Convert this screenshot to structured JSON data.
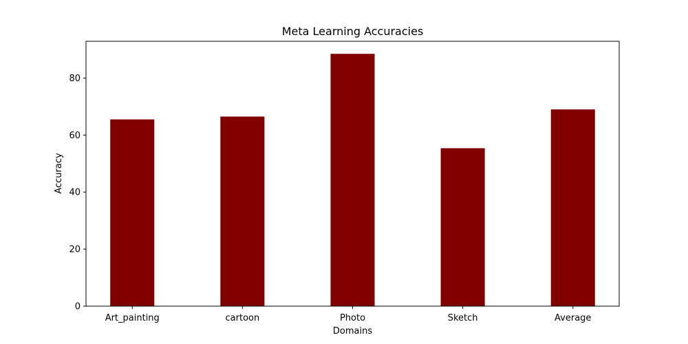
{
  "chart_data": {
    "type": "bar",
    "title": "Meta Learning Accuracies",
    "xlabel": "Domains",
    "ylabel": "Accuracy",
    "categories": [
      "Art_painting",
      "cartoon",
      "Photo",
      "Sketch",
      "Average"
    ],
    "values": [
      65.5,
      66.5,
      88.5,
      55.4,
      69.0
    ],
    "ylim": [
      0,
      92.9
    ],
    "yticks": [
      0,
      20,
      40,
      60,
      80
    ],
    "grid": false,
    "bar_color": "#800000"
  }
}
